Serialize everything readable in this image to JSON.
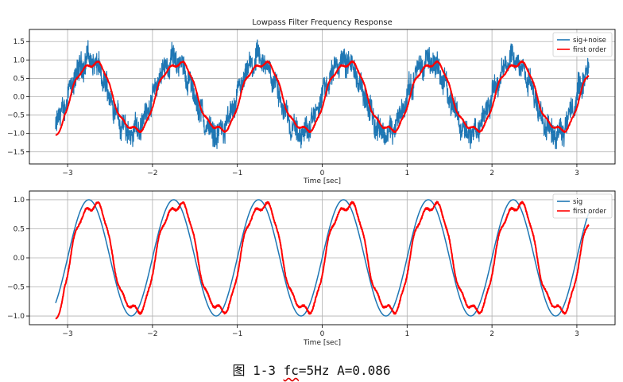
{
  "chart_data": [
    {
      "type": "line",
      "title": "Lowpass Filter Frequency Response",
      "xlabel": "Time [sec]",
      "ylabel": "",
      "xlim": [
        -3.45,
        3.45
      ],
      "ylim": [
        -1.83,
        1.83
      ],
      "xticks": [
        -3,
        -2,
        -1,
        0,
        1,
        2,
        3
      ],
      "xtick_labels": [
        "−3",
        "−2",
        "−1",
        "0",
        "1",
        "2",
        "3"
      ],
      "yticks": [
        -1.5,
        -1.0,
        -0.5,
        0.0,
        0.5,
        1.0,
        1.5
      ],
      "ytick_labels": [
        "−1.5",
        "−1.0",
        "−0.5",
        "0.0",
        "0.5",
        "1.0",
        "1.5"
      ],
      "grid": true,
      "legend": "top-right",
      "x_range": [
        -3.14159,
        3.14159
      ],
      "signal": "sin(2*pi*t) + noise",
      "noise_amplitude_approx": 0.4,
      "series": [
        {
          "name": "sig+noise",
          "color": "#1f77b4"
        },
        {
          "name": "first order",
          "color": "#ff0000"
        }
      ]
    },
    {
      "type": "line",
      "title": "",
      "xlabel": "Time [sec]",
      "ylabel": "",
      "xlim": [
        -3.45,
        3.45
      ],
      "ylim": [
        -1.15,
        1.15
      ],
      "xticks": [
        -3,
        -2,
        -1,
        0,
        1,
        2,
        3
      ],
      "xtick_labels": [
        "−3",
        "−2",
        "−1",
        "0",
        "1",
        "2",
        "3"
      ],
      "yticks": [
        -1.0,
        -0.5,
        0.0,
        0.5,
        1.0
      ],
      "ytick_labels": [
        "−1.0",
        "−0.5",
        "0.0",
        "0.5",
        "1.0"
      ],
      "grid": true,
      "legend": "top-right",
      "x_range": [
        -3.14159,
        3.14159
      ],
      "signal": "sin(2*pi*t)",
      "series": [
        {
          "name": "sig",
          "color": "#1f77b4"
        },
        {
          "name": "first order",
          "color": "#ff0000"
        }
      ]
    }
  ],
  "caption": {
    "prefix": "图 1-3 ",
    "fc": "fc",
    "rest": "=5Hz  A=0.086"
  }
}
